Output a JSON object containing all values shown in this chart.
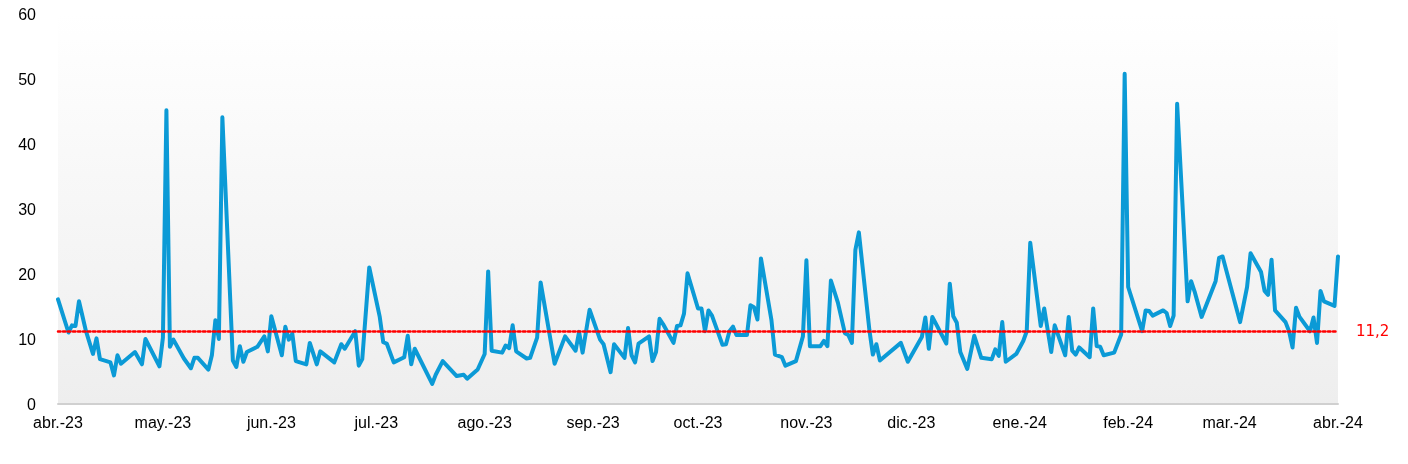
{
  "chart_data": {
    "type": "line",
    "x": [
      "2023-04-01",
      "2023-04-04",
      "2023-04-05",
      "2023-04-06",
      "2023-04-07",
      "2023-04-09",
      "2023-04-11",
      "2023-04-12",
      "2023-04-13",
      "2023-04-16",
      "2023-04-17",
      "2023-04-18",
      "2023-04-19",
      "2023-04-23",
      "2023-04-25",
      "2023-04-26",
      "2023-04-30",
      "2023-05-01",
      "2023-05-02",
      "2023-05-03",
      "2023-05-04",
      "2023-05-07",
      "2023-05-09",
      "2023-05-10",
      "2023-05-11",
      "2023-05-14",
      "2023-05-15",
      "2023-05-16",
      "2023-05-17",
      "2023-05-18",
      "2023-05-21",
      "2023-05-22",
      "2023-05-23",
      "2023-05-24",
      "2023-05-25",
      "2023-05-28",
      "2023-05-30",
      "2023-05-31",
      "2023-06-01",
      "2023-06-04",
      "2023-06-05",
      "2023-06-06",
      "2023-06-07",
      "2023-06-08",
      "2023-06-11",
      "2023-06-12",
      "2023-06-14",
      "2023-06-15",
      "2023-06-19",
      "2023-06-21",
      "2023-06-22",
      "2023-06-25",
      "2023-06-26",
      "2023-06-27",
      "2023-06-29",
      "2023-07-02",
      "2023-07-03",
      "2023-07-04",
      "2023-07-06",
      "2023-07-09",
      "2023-07-10",
      "2023-07-11",
      "2023-07-12",
      "2023-07-17",
      "2023-07-18",
      "2023-07-20",
      "2023-07-24",
      "2023-07-26",
      "2023-07-27",
      "2023-07-30",
      "2023-08-01",
      "2023-08-02",
      "2023-08-03",
      "2023-08-06",
      "2023-08-07",
      "2023-08-08",
      "2023-08-09",
      "2023-08-10",
      "2023-08-13",
      "2023-08-14",
      "2023-08-16",
      "2023-08-17",
      "2023-08-21",
      "2023-08-24",
      "2023-08-27",
      "2023-08-28",
      "2023-08-29",
      "2023-08-31",
      "2023-09-03",
      "2023-09-04",
      "2023-09-06",
      "2023-09-07",
      "2023-09-10",
      "2023-09-11",
      "2023-09-12",
      "2023-09-13",
      "2023-09-14",
      "2023-09-17",
      "2023-09-18",
      "2023-09-19",
      "2023-09-20",
      "2023-09-21",
      "2023-09-24",
      "2023-09-25",
      "2023-09-26",
      "2023-09-27",
      "2023-09-28",
      "2023-10-01",
      "2023-10-02",
      "2023-10-03",
      "2023-10-04",
      "2023-10-05",
      "2023-10-08",
      "2023-10-09",
      "2023-10-10",
      "2023-10-11",
      "2023-10-12",
      "2023-10-15",
      "2023-10-16",
      "2023-10-17",
      "2023-10-18",
      "2023-10-19",
      "2023-10-22",
      "2023-10-23",
      "2023-10-25",
      "2023-10-26",
      "2023-10-29",
      "2023-10-31",
      "2023-11-01",
      "2023-11-02",
      "2023-11-05",
      "2023-11-06",
      "2023-11-07",
      "2023-11-08",
      "2023-11-10",
      "2023-11-12",
      "2023-11-13",
      "2023-11-14",
      "2023-11-15",
      "2023-11-16",
      "2023-11-19",
      "2023-11-20",
      "2023-11-21",
      "2023-11-22",
      "2023-11-28",
      "2023-11-30",
      "2023-12-04",
      "2023-12-05",
      "2023-12-06",
      "2023-12-07",
      "2023-12-11",
      "2023-12-12",
      "2023-12-13",
      "2023-12-14",
      "2023-12-15",
      "2023-12-17",
      "2023-12-19",
      "2023-12-21",
      "2023-12-24",
      "2023-12-25",
      "2023-12-26",
      "2023-12-27",
      "2023-12-28",
      "2023-12-31",
      "2024-01-02",
      "2024-01-03",
      "2024-01-04",
      "2024-01-07",
      "2024-01-08",
      "2024-01-10",
      "2024-01-11",
      "2024-01-14",
      "2024-01-15",
      "2024-01-16",
      "2024-01-17",
      "2024-01-18",
      "2024-01-21",
      "2024-01-22",
      "2024-01-23",
      "2024-01-24",
      "2024-01-25",
      "2024-01-28",
      "2024-01-30",
      "2024-01-31",
      "2024-02-01",
      "2024-02-05",
      "2024-02-06",
      "2024-02-07",
      "2024-02-08",
      "2024-02-11",
      "2024-02-12",
      "2024-02-13",
      "2024-02-14",
      "2024-02-15",
      "2024-02-18",
      "2024-02-19",
      "2024-02-20",
      "2024-02-22",
      "2024-02-26",
      "2024-02-27",
      "2024-02-28",
      "2024-03-04",
      "2024-03-06",
      "2024-03-07",
      "2024-03-10",
      "2024-03-11",
      "2024-03-12",
      "2024-03-13",
      "2024-03-14",
      "2024-03-17",
      "2024-03-18",
      "2024-03-19",
      "2024-03-20",
      "2024-03-21",
      "2024-03-24",
      "2024-03-25",
      "2024-03-26",
      "2024-03-27",
      "2024-03-28",
      "2024-03-31",
      "2024-04-01"
    ],
    "series": [
      {
        "color": "#0b9ad6",
        "values": [
          16.1,
          11.0,
          12.1,
          12.0,
          15.8,
          11.2,
          7.7,
          10.1,
          6.9,
          6.4,
          4.4,
          7.5,
          6.2,
          8.0,
          6.1,
          10.0,
          5.8,
          10.2,
          45.2,
          8.8,
          9.9,
          7.0,
          5.5,
          7.1,
          7.1,
          5.3,
          7.5,
          12.9,
          10.0,
          44.1,
          6.7,
          5.7,
          8.9,
          6.5,
          8.0,
          8.8,
          10.4,
          8.1,
          13.5,
          7.5,
          11.9,
          9.9,
          10.8,
          6.6,
          6.1,
          9.4,
          6.1,
          8.1,
          6.4,
          9.2,
          8.5,
          11.2,
          5.9,
          6.9,
          21.0,
          13.4,
          9.5,
          9.3,
          6.4,
          7.2,
          10.5,
          6.1,
          8.5,
          3.1,
          4.5,
          6.6,
          4.3,
          4.5,
          3.9,
          5.3,
          7.7,
          20.4,
          8.2,
          7.9,
          9.0,
          8.6,
          12.1,
          8.1,
          7.0,
          7.1,
          10.2,
          18.7,
          6.2,
          10.4,
          8.2,
          11.1,
          7.9,
          14.5,
          9.9,
          9.2,
          4.9,
          9.2,
          7.1,
          11.7,
          7.5,
          6.4,
          9.3,
          10.4,
          6.6,
          8.0,
          13.1,
          12.3,
          9.4,
          12.0,
          12.1,
          13.9,
          20.1,
          14.7,
          14.7,
          11.2,
          14.4,
          13.6,
          9.1,
          9.2,
          11.2,
          11.9,
          10.6,
          10.6,
          15.2,
          14.9,
          13.0,
          22.4,
          12.9,
          7.6,
          7.2,
          5.9,
          6.6,
          10.4,
          22.1,
          8.9,
          8.9,
          9.7,
          8.9,
          19.0,
          15.6,
          10.9,
          10.6,
          9.4,
          23.7,
          26.4,
          11.4,
          7.6,
          9.2,
          6.7,
          9.4,
          6.5,
          10.3,
          13.3,
          8.5,
          13.4,
          9.3,
          18.5,
          13.5,
          12.5,
          8.0,
          5.4,
          10.5,
          7.1,
          6.9,
          8.4,
          7.4,
          12.6,
          6.5,
          7.7,
          9.7,
          11.2,
          24.8,
          12.0,
          14.7,
          8.0,
          12.1,
          7.5,
          13.4,
          8.2,
          7.6,
          8.7,
          7.2,
          14.7,
          8.9,
          8.8,
          7.5,
          7.9,
          10.7,
          50.8,
          18.0,
          11.2,
          14.4,
          14.3,
          13.6,
          14.4,
          14.0,
          12.0,
          13.6,
          46.2,
          15.8,
          18.9,
          17.3,
          13.4,
          18.9,
          22.5,
          22.7,
          12.6,
          18.0,
          23.2,
          20.3,
          17.4,
          16.8,
          22.2,
          14.4,
          12.6,
          11.2,
          8.7,
          14.8,
          13.4,
          11.2,
          13.3,
          9.4,
          17.4,
          15.8,
          15.1,
          22.7
        ]
      }
    ],
    "xlim": [
      "2023-04-01",
      "2024-04-01"
    ],
    "xticks": [
      {
        "value": "2023-04-01",
        "label": "abr.-23"
      },
      {
        "value": "2023-05-01",
        "label": "may.-23"
      },
      {
        "value": "2023-06-01",
        "label": "jun.-23"
      },
      {
        "value": "2023-07-01",
        "label": "jul.-23"
      },
      {
        "value": "2023-08-01",
        "label": "ago.-23"
      },
      {
        "value": "2023-09-01",
        "label": "sep.-23"
      },
      {
        "value": "2023-10-01",
        "label": "oct.-23"
      },
      {
        "value": "2023-11-01",
        "label": "nov.-23"
      },
      {
        "value": "2023-12-01",
        "label": "dic.-23"
      },
      {
        "value": "2024-01-01",
        "label": "ene.-24"
      },
      {
        "value": "2024-02-01",
        "label": "feb.-24"
      },
      {
        "value": "2024-03-01",
        "label": "mar.-24"
      },
      {
        "value": "2024-04-01",
        "label": "abr.-24"
      }
    ],
    "ylim": [
      0,
      60
    ],
    "yticks": [
      0,
      10,
      20,
      30,
      40,
      50,
      60
    ],
    "ref_lines": [
      {
        "axis": "y",
        "value": 11.2,
        "label": "11,2",
        "color": "#ff0000",
        "line_style": "dotted"
      }
    ],
    "marker": "none"
  }
}
